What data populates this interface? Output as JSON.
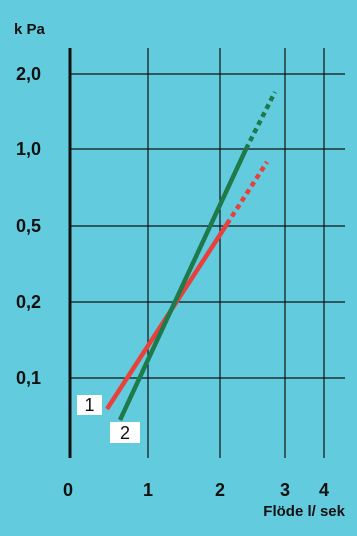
{
  "chart_data": {
    "type": "line",
    "background_color": "#63CBDE",
    "y_unit_label": "k Pa",
    "x_unit_label": "Flöde l/ sek",
    "y_tick_labels": [
      "2,0",
      "1,0",
      "0,5",
      "0,2",
      "0,1"
    ],
    "y_tick_values": [
      2.0,
      1.0,
      0.5,
      0.2,
      0.1
    ],
    "x_tick_labels": [
      "0",
      "1",
      "2",
      "3",
      "4"
    ],
    "x_tick_values": [
      0,
      1,
      2,
      3,
      4
    ],
    "x_scale": "square-root",
    "y_scale": "logarithmic",
    "xlim": [
      0,
      4.4
    ],
    "ylim": [
      0.04,
      2.4
    ],
    "grid": true,
    "series": [
      {
        "name": "1",
        "color": "#E8403C",
        "solid": [
          [
            0.27,
            0.06
          ],
          [
            1.99,
            0.5
          ]
        ],
        "dashed": [
          [
            1.99,
            0.5
          ],
          [
            2.64,
            0.85
          ]
        ]
      },
      {
        "name": "2",
        "color": "#1E7A4A",
        "solid": [
          [
            0.42,
            0.045
          ],
          [
            2.24,
            1.0
          ]
        ],
        "dashed": [
          [
            2.24,
            1.0
          ],
          [
            2.85,
            1.8
          ]
        ]
      }
    ]
  }
}
